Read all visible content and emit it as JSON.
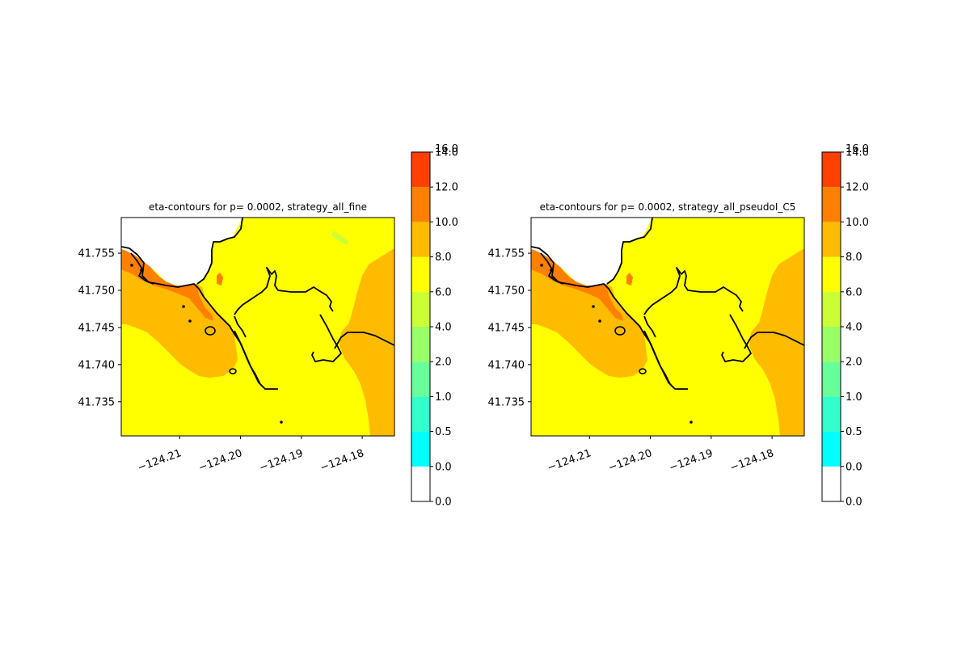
{
  "chart_data": [
    {
      "type": "heatmap",
      "title": "eta-contours for p= 0.0002, strategy_all_fine",
      "xticks": [
        "−124.21",
        "−124.20",
        "−124.19",
        "−124.18"
      ],
      "xtick_values": [
        -124.21,
        -124.2,
        -124.19,
        -124.18
      ],
      "yticks": [
        "41.755",
        "41.750",
        "41.745",
        "41.740",
        "41.735"
      ],
      "ytick_values": [
        41.755,
        41.75,
        41.745,
        41.74,
        41.735
      ],
      "xlim": [
        -124.2196,
        -124.1747
      ],
      "ylim": [
        41.7304,
        41.7598
      ],
      "colorbar": {
        "levels": [
          "0.0",
          "0.0",
          "0.5",
          "1.0",
          "2.0",
          "4.0",
          "6.0",
          "8.0",
          "10.0",
          "12.0",
          "14.0",
          "16.0"
        ],
        "colors": [
          "#ffffff",
          "#00ffff",
          "#33ffcc",
          "#66ff99",
          "#99ff66",
          "#ccff33",
          "#ffff00",
          "#ffbb00",
          "#ff8000",
          "#ff4000",
          "#ff0000"
        ]
      }
    },
    {
      "type": "heatmap",
      "title": "eta-contours for p= 0.0002, strategy_all_pseudoI_C5",
      "xticks": [
        "−124.21",
        "−124.20",
        "−124.19",
        "−124.18"
      ],
      "xtick_values": [
        -124.21,
        -124.2,
        -124.19,
        -124.18
      ],
      "yticks": [
        "41.755",
        "41.750",
        "41.745",
        "41.740",
        "41.735"
      ],
      "ytick_values": [
        41.755,
        41.75,
        41.745,
        41.74,
        41.735
      ],
      "xlim": [
        -124.2196,
        -124.1747
      ],
      "ylim": [
        41.7304,
        41.7598
      ],
      "colorbar": {
        "levels": [
          "0.0",
          "0.0",
          "0.5",
          "1.0",
          "2.0",
          "4.0",
          "6.0",
          "8.0",
          "10.0",
          "12.0",
          "14.0",
          "16.0"
        ],
        "colors": [
          "#ffffff",
          "#00ffff",
          "#33ffcc",
          "#66ff99",
          "#99ff66",
          "#ccff33",
          "#ffff00",
          "#ffbb00",
          "#ff8000",
          "#ff4000",
          "#ff0000"
        ]
      }
    }
  ]
}
